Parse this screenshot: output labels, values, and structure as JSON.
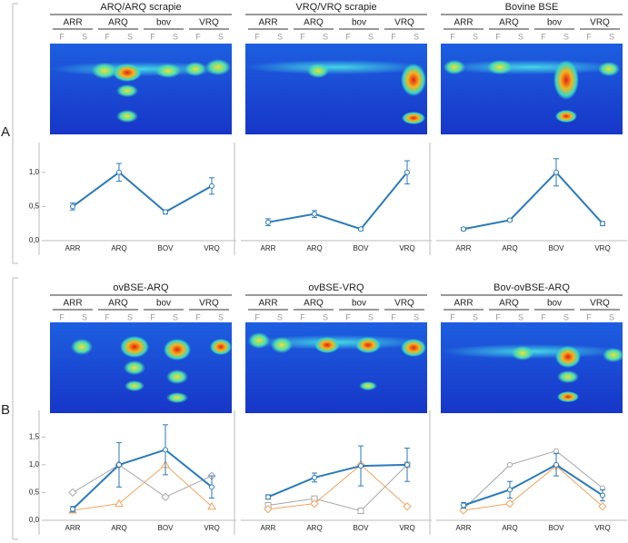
{
  "panel_labels": [
    "A",
    "B"
  ],
  "chart_data": [
    {
      "type": "line",
      "title": "ARQ/ARQ scrapie",
      "groups": [
        "ARR",
        "ARQ",
        "bov",
        "VRQ"
      ],
      "lanes": [
        "F",
        "S",
        "F",
        "S",
        "F",
        "S",
        "F",
        "S"
      ],
      "categories": [
        "ARR",
        "ARQ",
        "BOV",
        "VRQ"
      ],
      "ylim": [
        0,
        1.25
      ],
      "yticks": [
        {
          "value": 0,
          "label": "0,0"
        },
        {
          "value": 0.5,
          "label": "0,5"
        },
        {
          "value": 1,
          "label": "1,0"
        }
      ],
      "series": [
        {
          "color": "#2a7ab8",
          "marker": "circle",
          "values": [
            0.5,
            1.0,
            0.42,
            0.8
          ],
          "errors": [
            0.05,
            0.13,
            0.03,
            0.12
          ]
        }
      ]
    },
    {
      "type": "line",
      "title": "VRQ/VRQ scrapie",
      "groups": [
        "ARR",
        "ARQ",
        "bov",
        "VRQ"
      ],
      "lanes": [
        "F",
        "S",
        "F",
        "S",
        "F",
        "S",
        "F",
        "S"
      ],
      "categories": [
        "ARR",
        "ARQ",
        "BOV",
        "VRQ"
      ],
      "ylim": [
        0,
        1.25
      ],
      "series": [
        {
          "color": "#2a7ab8",
          "marker": "circle",
          "values": [
            0.27,
            0.39,
            0.17,
            1.0
          ],
          "errors": [
            0.05,
            0.05,
            0.02,
            0.17
          ]
        }
      ]
    },
    {
      "type": "line",
      "title": "Bovine BSE",
      "groups": [
        "ARR",
        "ARQ",
        "bov",
        "VRQ"
      ],
      "lanes": [
        "F",
        "S",
        "F",
        "S",
        "F",
        "S",
        "F",
        "S"
      ],
      "categories": [
        "ARR",
        "ARQ",
        "BOV",
        "VRQ"
      ],
      "ylim": [
        0,
        1.25
      ],
      "series": [
        {
          "color": "#2a7ab8",
          "marker": "circle",
          "values": [
            0.17,
            0.3,
            1.0,
            0.25
          ],
          "errors": [
            0.02,
            0.02,
            0.2,
            0.03
          ]
        }
      ]
    },
    {
      "type": "line",
      "title": "ovBSE-ARQ",
      "groups": [
        "ARR",
        "ARQ",
        "bov",
        "VRQ"
      ],
      "lanes": [
        "F",
        "S",
        "F",
        "S",
        "F",
        "S",
        "F",
        "S"
      ],
      "categories": [
        "ARR",
        "ARQ",
        "BOV",
        "VRQ"
      ],
      "ylim": [
        0,
        1.75
      ],
      "yticks": [
        {
          "value": 0,
          "label": "0,0"
        },
        {
          "value": 0.5,
          "label": "0,5"
        },
        {
          "value": 1,
          "label": "1,0"
        },
        {
          "value": 1.5,
          "label": "1,5"
        }
      ],
      "series": [
        {
          "color": "#a6a6a6",
          "marker": "diamond",
          "values": [
            0.5,
            1.0,
            0.42,
            0.8
          ]
        },
        {
          "color": "#f4a460",
          "marker": "triangle",
          "values": [
            0.18,
            0.3,
            1.0,
            0.25
          ]
        },
        {
          "color": "#2a7ab8",
          "marker": "circle",
          "values": [
            0.2,
            1.0,
            1.27,
            0.6
          ],
          "errors": [
            0.05,
            0.4,
            0.45,
            0.2
          ]
        }
      ]
    },
    {
      "type": "line",
      "title": "ovBSE-VRQ",
      "groups": [
        "ARR",
        "ARQ",
        "bov",
        "VRQ"
      ],
      "lanes": [
        "F",
        "S",
        "F",
        "S",
        "F",
        "S",
        "F",
        "S"
      ],
      "categories": [
        "ARR",
        "ARQ",
        "BOV",
        "VRQ"
      ],
      "ylim": [
        0,
        1.75
      ],
      "series": [
        {
          "color": "#a6a6a6",
          "marker": "square",
          "values": [
            0.27,
            0.39,
            0.17,
            1.0
          ]
        },
        {
          "color": "#f4a460",
          "marker": "diamond",
          "values": [
            0.2,
            0.3,
            1.0,
            0.25
          ]
        },
        {
          "color": "#2a7ab8",
          "marker": "circle",
          "values": [
            0.42,
            0.77,
            0.98,
            1.0
          ],
          "errors": [
            0.04,
            0.08,
            0.36,
            0.3
          ]
        }
      ]
    },
    {
      "type": "line",
      "title": "Bov-ovBSE-ARQ",
      "groups": [
        "ARR",
        "ARQ",
        "bov",
        "VRQ"
      ],
      "lanes": [
        "F",
        "S",
        "F",
        "S",
        "F",
        "S",
        "F",
        "S"
      ],
      "categories": [
        "ARR",
        "ARQ",
        "BOV",
        "VRQ"
      ],
      "ylim": [
        0,
        1.75
      ],
      "series": [
        {
          "color": "#a6a6a6",
          "marker": "circle",
          "values": [
            0.2,
            1.0,
            1.25,
            0.58
          ]
        },
        {
          "color": "#f4a460",
          "marker": "diamond",
          "values": [
            0.18,
            0.3,
            0.98,
            0.25
          ]
        },
        {
          "color": "#2a7ab8",
          "marker": "circle",
          "values": [
            0.27,
            0.55,
            1.0,
            0.45
          ],
          "errors": [
            0.05,
            0.15,
            0.2,
            0.1
          ]
        }
      ]
    }
  ]
}
